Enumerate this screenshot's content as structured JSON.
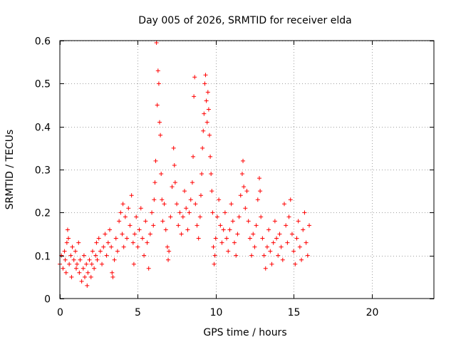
{
  "chart_data": {
    "type": "scatter",
    "title": "Day 005 of 2026, SRMTID for receiver elda",
    "xlabel": "GPS time / hours",
    "ylabel": "SRMTID / TECUs",
    "xlim": [
      0,
      24
    ],
    "ylim": [
      0,
      0.6
    ],
    "xticks": [
      0,
      5,
      10,
      15,
      20
    ],
    "yticks": [
      0,
      0.1,
      0.2,
      0.3,
      0.4,
      0.5,
      0.6
    ],
    "xtick_labels": [
      "0",
      "5",
      "10",
      "15",
      "20"
    ],
    "ytick_labels": [
      "0",
      "0.1",
      "0.2",
      "0.3",
      "0.4",
      "0.5",
      "0.6"
    ],
    "grid": true,
    "marker": "+",
    "series_color": "#ff0000",
    "series": [
      {
        "name": "SRMTID",
        "points": [
          [
            0.0,
            0.08
          ],
          [
            0.1,
            0.1
          ],
          [
            0.2,
            0.07
          ],
          [
            0.3,
            0.11
          ],
          [
            0.35,
            0.09
          ],
          [
            0.4,
            0.06
          ],
          [
            0.45,
            0.13
          ],
          [
            0.5,
            0.16
          ],
          [
            0.55,
            0.14
          ],
          [
            0.6,
            0.08
          ],
          [
            0.7,
            0.1
          ],
          [
            0.75,
            0.05
          ],
          [
            0.8,
            0.12
          ],
          [
            0.9,
            0.09
          ],
          [
            1.0,
            0.11
          ],
          [
            1.05,
            0.07
          ],
          [
            1.1,
            0.08
          ],
          [
            1.2,
            0.13
          ],
          [
            1.25,
            0.06
          ],
          [
            1.3,
            0.09
          ],
          [
            1.4,
            0.04
          ],
          [
            1.5,
            0.07
          ],
          [
            1.55,
            0.1
          ],
          [
            1.6,
            0.05
          ],
          [
            1.7,
            0.08
          ],
          [
            1.75,
            0.03
          ],
          [
            1.8,
            0.06
          ],
          [
            1.9,
            0.09
          ],
          [
            2.0,
            0.05
          ],
          [
            2.05,
            0.08
          ],
          [
            2.1,
            0.11
          ],
          [
            2.2,
            0.07
          ],
          [
            2.3,
            0.1
          ],
          [
            2.35,
            0.13
          ],
          [
            2.4,
            0.09
          ],
          [
            2.5,
            0.14
          ],
          [
            2.6,
            0.11
          ],
          [
            2.7,
            0.08
          ],
          [
            2.8,
            0.12
          ],
          [
            2.9,
            0.15
          ],
          [
            3.0,
            0.1
          ],
          [
            3.1,
            0.13
          ],
          [
            3.2,
            0.16
          ],
          [
            3.3,
            0.12
          ],
          [
            3.35,
            0.06
          ],
          [
            3.4,
            0.05
          ],
          [
            3.5,
            0.09
          ],
          [
            3.6,
            0.14
          ],
          [
            3.7,
            0.11
          ],
          [
            3.8,
            0.18
          ],
          [
            3.9,
            0.2
          ],
          [
            4.0,
            0.15
          ],
          [
            4.05,
            0.22
          ],
          [
            4.1,
            0.12
          ],
          [
            4.2,
            0.19
          ],
          [
            4.3,
            0.14
          ],
          [
            4.4,
            0.21
          ],
          [
            4.5,
            0.17
          ],
          [
            4.6,
            0.24
          ],
          [
            4.7,
            0.13
          ],
          [
            4.75,
            0.08
          ],
          [
            4.8,
            0.15
          ],
          [
            4.9,
            0.19
          ],
          [
            5.0,
            0.12
          ],
          [
            5.1,
            0.16
          ],
          [
            5.2,
            0.21
          ],
          [
            5.3,
            0.14
          ],
          [
            5.4,
            0.1
          ],
          [
            5.5,
            0.18
          ],
          [
            5.6,
            0.13
          ],
          [
            5.7,
            0.07
          ],
          [
            5.8,
            0.15
          ],
          [
            5.9,
            0.2
          ],
          [
            6.0,
            0.17
          ],
          [
            6.05,
            0.23
          ],
          [
            6.1,
            0.27
          ],
          [
            6.15,
            0.32
          ],
          [
            6.2,
            0.595
          ],
          [
            6.25,
            0.45
          ],
          [
            6.3,
            0.53
          ],
          [
            6.35,
            0.5
          ],
          [
            6.4,
            0.41
          ],
          [
            6.45,
            0.38
          ],
          [
            6.5,
            0.29
          ],
          [
            6.55,
            0.23
          ],
          [
            6.6,
            0.18
          ],
          [
            6.7,
            0.22
          ],
          [
            6.8,
            0.16
          ],
          [
            6.9,
            0.12
          ],
          [
            6.95,
            0.09
          ],
          [
            7.0,
            0.11
          ],
          [
            7.1,
            0.19
          ],
          [
            7.2,
            0.26
          ],
          [
            7.3,
            0.35
          ],
          [
            7.35,
            0.31
          ],
          [
            7.4,
            0.27
          ],
          [
            7.5,
            0.22
          ],
          [
            7.6,
            0.17
          ],
          [
            7.7,
            0.2
          ],
          [
            7.8,
            0.15
          ],
          [
            7.9,
            0.19
          ],
          [
            8.0,
            0.25
          ],
          [
            8.1,
            0.21
          ],
          [
            8.2,
            0.16
          ],
          [
            8.3,
            0.2
          ],
          [
            8.4,
            0.23
          ],
          [
            8.5,
            0.27
          ],
          [
            8.55,
            0.33
          ],
          [
            8.6,
            0.47
          ],
          [
            8.65,
            0.515
          ],
          [
            8.7,
            0.22
          ],
          [
            8.8,
            0.17
          ],
          [
            8.9,
            0.14
          ],
          [
            9.0,
            0.19
          ],
          [
            9.05,
            0.24
          ],
          [
            9.1,
            0.29
          ],
          [
            9.15,
            0.35
          ],
          [
            9.2,
            0.39
          ],
          [
            9.25,
            0.43
          ],
          [
            9.3,
            0.5
          ],
          [
            9.35,
            0.52
          ],
          [
            9.4,
            0.46
          ],
          [
            9.45,
            0.41
          ],
          [
            9.5,
            0.48
          ],
          [
            9.55,
            0.44
          ],
          [
            9.6,
            0.38
          ],
          [
            9.65,
            0.33
          ],
          [
            9.7,
            0.29
          ],
          [
            9.75,
            0.25
          ],
          [
            9.8,
            0.2
          ],
          [
            9.85,
            0.12
          ],
          [
            9.9,
            0.08
          ],
          [
            9.95,
            0.1
          ],
          [
            10.0,
            0.14
          ],
          [
            10.1,
            0.19
          ],
          [
            10.2,
            0.23
          ],
          [
            10.3,
            0.17
          ],
          [
            10.4,
            0.13
          ],
          [
            10.5,
            0.16
          ],
          [
            10.6,
            0.2
          ],
          [
            10.7,
            0.14
          ],
          [
            10.8,
            0.11
          ],
          [
            10.9,
            0.16
          ],
          [
            11.0,
            0.22
          ],
          [
            11.1,
            0.18
          ],
          [
            11.2,
            0.13
          ],
          [
            11.3,
            0.1
          ],
          [
            11.4,
            0.15
          ],
          [
            11.5,
            0.19
          ],
          [
            11.6,
            0.24
          ],
          [
            11.7,
            0.29
          ],
          [
            11.75,
            0.32
          ],
          [
            11.8,
            0.26
          ],
          [
            11.9,
            0.21
          ],
          [
            12.0,
            0.25
          ],
          [
            12.1,
            0.18
          ],
          [
            12.2,
            0.14
          ],
          [
            12.3,
            0.1
          ],
          [
            12.4,
            0.15
          ],
          [
            12.5,
            0.12
          ],
          [
            12.6,
            0.17
          ],
          [
            12.7,
            0.23
          ],
          [
            12.8,
            0.28
          ],
          [
            12.85,
            0.25
          ],
          [
            12.9,
            0.19
          ],
          [
            13.0,
            0.14
          ],
          [
            13.1,
            0.1
          ],
          [
            13.2,
            0.07
          ],
          [
            13.3,
            0.12
          ],
          [
            13.4,
            0.16
          ],
          [
            13.5,
            0.11
          ],
          [
            13.6,
            0.08
          ],
          [
            13.7,
            0.13
          ],
          [
            13.8,
            0.18
          ],
          [
            13.9,
            0.14
          ],
          [
            14.0,
            0.1
          ],
          [
            14.1,
            0.15
          ],
          [
            14.2,
            0.12
          ],
          [
            14.3,
            0.09
          ],
          [
            14.4,
            0.22
          ],
          [
            14.5,
            0.17
          ],
          [
            14.6,
            0.13
          ],
          [
            14.7,
            0.19
          ],
          [
            14.8,
            0.23
          ],
          [
            14.9,
            0.15
          ],
          [
            15.0,
            0.11
          ],
          [
            15.1,
            0.08
          ],
          [
            15.2,
            0.14
          ],
          [
            15.3,
            0.18
          ],
          [
            15.4,
            0.12
          ],
          [
            15.5,
            0.09
          ],
          [
            15.6,
            0.16
          ],
          [
            15.7,
            0.2
          ],
          [
            15.8,
            0.13
          ],
          [
            15.9,
            0.1
          ],
          [
            16.0,
            0.17
          ]
        ]
      }
    ]
  }
}
